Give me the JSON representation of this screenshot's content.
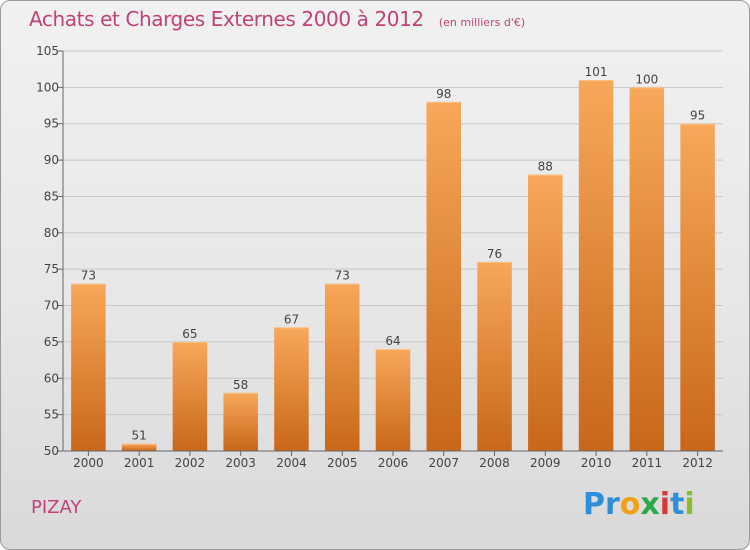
{
  "header": {
    "title": "Achats et Charges Externes 2000 à 2012",
    "unit": "(en milliers d'€)"
  },
  "footer": {
    "commune": "PIZAY",
    "logo": {
      "letters": [
        "P",
        "r",
        "o",
        "x",
        "i",
        "t",
        "i"
      ],
      "colors": [
        "#2e8fd8",
        "#2e8fd8",
        "#f2a014",
        "#2aa84a",
        "#d43a3a",
        "#2e8fd8",
        "#8bbb2e"
      ]
    }
  },
  "chart_data": {
    "type": "bar",
    "categories": [
      "2000",
      "2001",
      "2002",
      "2003",
      "2004",
      "2005",
      "2006",
      "2007",
      "2008",
      "2009",
      "2010",
      "2011",
      "2012"
    ],
    "values": [
      73,
      51,
      65,
      58,
      67,
      73,
      64,
      98,
      76,
      88,
      101,
      100,
      95
    ],
    "ylim": [
      50,
      105
    ],
    "yticks": [
      50,
      55,
      60,
      65,
      70,
      75,
      80,
      85,
      90,
      95,
      100,
      105
    ],
    "grid": true,
    "colors": {
      "bar_top": "#f7a85a",
      "bar_bottom": "#c96718",
      "grid": "#c8c8c8",
      "axis": "#666666",
      "label": "#444444"
    }
  }
}
